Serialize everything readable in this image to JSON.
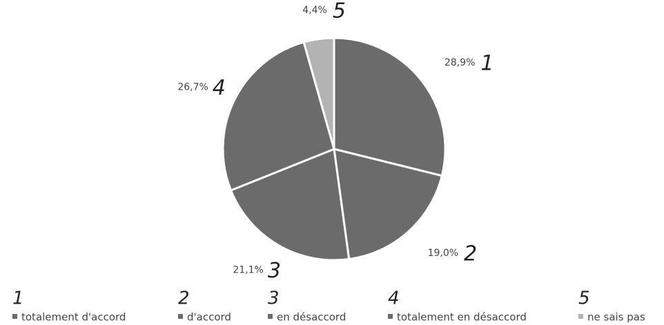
{
  "chart_data": {
    "type": "pie",
    "categories": [
      "totalement d'accord",
      "d'accord",
      "en désaccord",
      "totalement en désaccord",
      "ne sais pas"
    ],
    "values": [
      28.9,
      19.0,
      21.1,
      26.7,
      4.4
    ],
    "value_labels": [
      "28,9%",
      "19,0%",
      "21,1%",
      "26,7%",
      "4,4%"
    ],
    "annotations": [
      "1",
      "2",
      "3",
      "4",
      "5"
    ],
    "colors": [
      "#6b6b6b",
      "#6b6b6b",
      "#6b6b6b",
      "#6b6b6b",
      "#b3b3b3"
    ],
    "legend": "bottom"
  }
}
